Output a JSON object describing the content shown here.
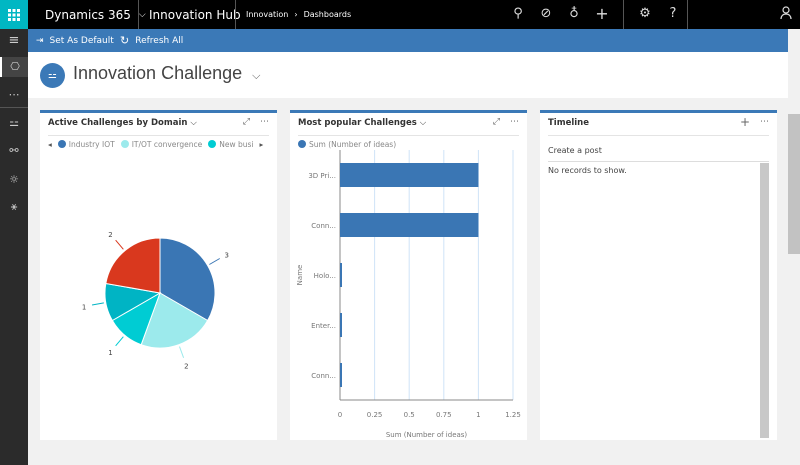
{
  "topbar": {
    "app_name": "Dynamics 365",
    "hub": "Innovation Hub",
    "breadcrumb": [
      "Innovation",
      "Dashboards"
    ],
    "icons": [
      "search-icon",
      "task-icon",
      "lightbulb-icon",
      "plus-icon",
      "gear-icon",
      "help-icon",
      "user-icon"
    ]
  },
  "commandbar": {
    "set_default": "Set As Default",
    "refresh": "Refresh All"
  },
  "header": {
    "title": "Innovation Challenge"
  },
  "cards": {
    "domain": {
      "title": "Active Challenges by Domain",
      "legend": [
        "Industry IOT",
        "IT/OT convergence",
        "New busi"
      ]
    },
    "popular": {
      "title": "Most popular Challenges",
      "legend": "Sum (Number of ideas)"
    },
    "timeline": {
      "title": "Timeline",
      "create_post": "Create a post",
      "empty": "No records to show."
    }
  },
  "chart_data": [
    {
      "type": "pie",
      "series": [
        {
          "name": "Industry IOT",
          "value": 3,
          "color": "#3a76b4"
        },
        {
          "name": "IT/OT convergence",
          "value": 2,
          "color": "#9ceaec"
        },
        {
          "name": "New busi",
          "value": 1,
          "color": "#00ccd3"
        },
        {
          "value": 1,
          "color": "#00b4c4"
        },
        {
          "value": 2,
          "color": "#d9381e"
        }
      ]
    },
    {
      "type": "bar",
      "orientation": "horizontal",
      "categories": [
        "3D Pri...",
        "Conn...",
        "Holo...",
        "Enter...",
        "Conn..."
      ],
      "values": [
        1,
        1,
        0,
        0,
        0
      ],
      "xlabel": "Sum (Number of ideas)",
      "ylabel": "Name",
      "xlim": [
        0,
        1.25
      ],
      "xticks": [
        "0",
        "0.25",
        "0.5",
        "0.75",
        "1",
        "1.25"
      ],
      "color": "#3a76b4",
      "grid": true
    }
  ]
}
